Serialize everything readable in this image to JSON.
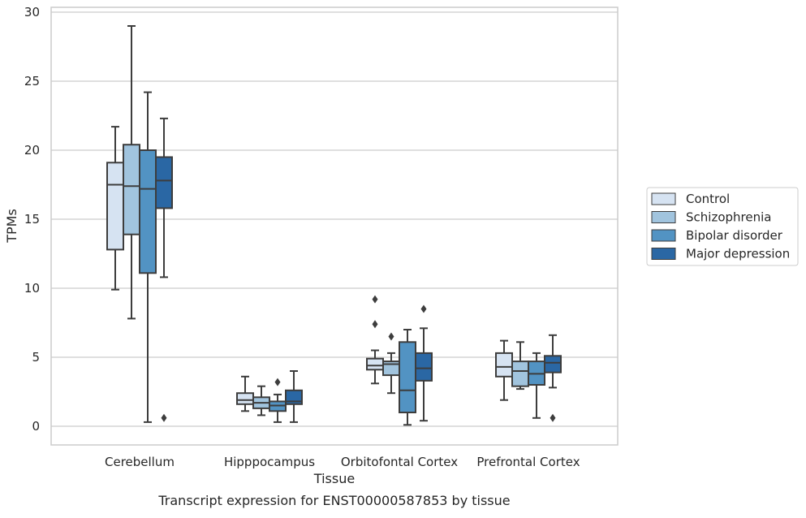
{
  "chart_data": {
    "type": "box",
    "title": "",
    "caption": "Transcript expression for ENST00000587853 by tissue",
    "xlabel": "Tissue",
    "ylabel": "TPMs",
    "ylim": [
      -1.3,
      30.5
    ],
    "yticks": [
      0,
      5,
      10,
      15,
      20,
      25,
      30
    ],
    "grid": "horizontal",
    "legend_position": "right",
    "categories": [
      "Cerebellum",
      "Hipppocampus",
      "Orbitofontal Cortex",
      "Prefrontal Cortex"
    ],
    "series": [
      {
        "name": "Control",
        "color": "#d6e3f2",
        "boxes": [
          {
            "whislo": 9.9,
            "q1": 12.8,
            "med": 17.5,
            "q3": 19.1,
            "whishi": 21.7,
            "fliers": []
          },
          {
            "whislo": 1.1,
            "q1": 1.6,
            "med": 1.9,
            "q3": 2.4,
            "whishi": 3.6,
            "fliers": []
          },
          {
            "whislo": 3.1,
            "q1": 4.1,
            "med": 4.4,
            "q3": 4.9,
            "whishi": 5.5,
            "fliers": [
              7.4,
              9.2
            ]
          },
          {
            "whislo": 1.9,
            "q1": 3.6,
            "med": 4.3,
            "q3": 5.3,
            "whishi": 6.2,
            "fliers": []
          }
        ]
      },
      {
        "name": "Schizophrenia",
        "color": "#a1c4de",
        "boxes": [
          {
            "whislo": 7.8,
            "q1": 13.9,
            "med": 17.4,
            "q3": 20.4,
            "whishi": 29.0,
            "fliers": []
          },
          {
            "whislo": 0.8,
            "q1": 1.3,
            "med": 1.7,
            "q3": 2.1,
            "whishi": 2.9,
            "fliers": []
          },
          {
            "whislo": 2.4,
            "q1": 3.7,
            "med": 4.5,
            "q3": 4.7,
            "whishi": 5.3,
            "fliers": [
              6.5
            ]
          },
          {
            "whislo": 2.7,
            "q1": 2.9,
            "med": 4.0,
            "q3": 4.7,
            "whishi": 6.1,
            "fliers": []
          }
        ]
      },
      {
        "name": "Bipolar disorder",
        "color": "#5293c3",
        "boxes": [
          {
            "whislo": 0.3,
            "q1": 11.1,
            "med": 17.2,
            "q3": 20.0,
            "whishi": 24.2,
            "fliers": []
          },
          {
            "whislo": 0.3,
            "q1": 1.1,
            "med": 1.5,
            "q3": 1.8,
            "whishi": 2.3,
            "fliers": [
              3.2
            ]
          },
          {
            "whislo": 0.1,
            "q1": 1.0,
            "med": 2.6,
            "q3": 6.1,
            "whishi": 7.0,
            "fliers": []
          },
          {
            "whislo": 0.6,
            "q1": 3.0,
            "med": 3.8,
            "q3": 4.7,
            "whishi": 5.3,
            "fliers": []
          }
        ]
      },
      {
        "name": "Major depression",
        "color": "#2a67a4",
        "boxes": [
          {
            "whislo": 10.8,
            "q1": 15.8,
            "med": 17.8,
            "q3": 19.5,
            "whishi": 22.3,
            "fliers": [
              0.6
            ]
          },
          {
            "whislo": 0.3,
            "q1": 1.6,
            "med": 1.8,
            "q3": 2.6,
            "whishi": 4.0,
            "fliers": []
          },
          {
            "whislo": 0.4,
            "q1": 3.3,
            "med": 4.2,
            "q3": 5.3,
            "whishi": 7.1,
            "fliers": [
              8.5
            ]
          },
          {
            "whislo": 2.8,
            "q1": 3.9,
            "med": 4.6,
            "q3": 5.1,
            "whishi": 6.6,
            "fliers": [
              0.6
            ]
          }
        ]
      }
    ]
  }
}
